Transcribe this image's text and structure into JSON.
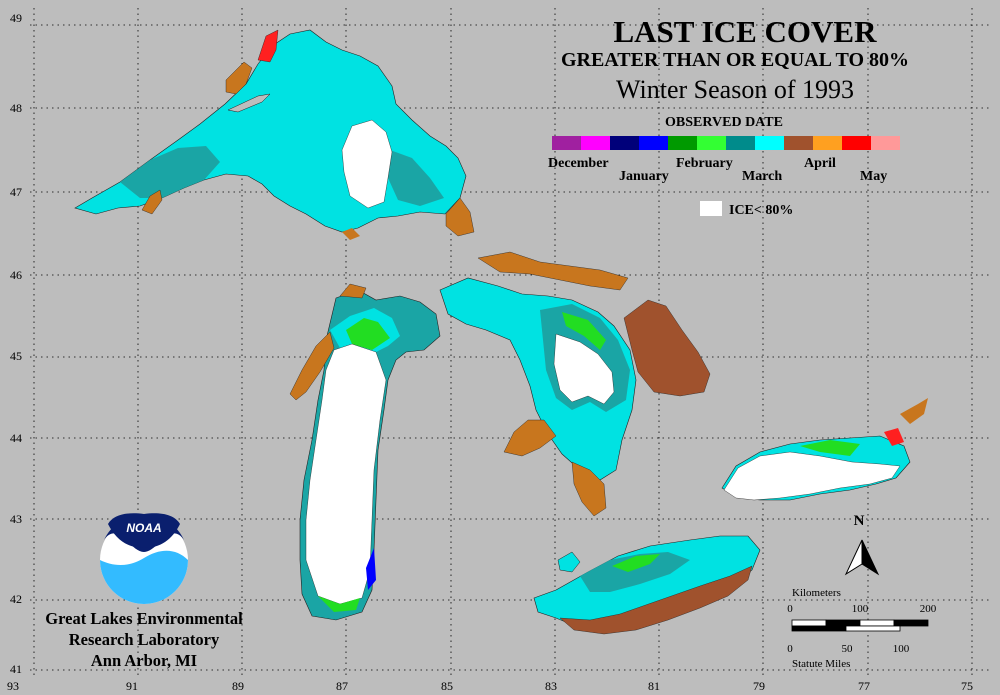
{
  "title": {
    "line1": "LAST ICE COVER",
    "line2": "GREATER THAN OR EQUAL TO 80%",
    "line3": "Winter Season of 1993"
  },
  "legend": {
    "heading": "OBSERVED DATE",
    "months": [
      {
        "label": "December",
        "colors": [
          "#a020a0",
          "#ff00ff"
        ]
      },
      {
        "label": "January",
        "colors": [
          "#00007a",
          "#0000ff"
        ]
      },
      {
        "label": "February",
        "colors": [
          "#009a00",
          "#33ff33"
        ]
      },
      {
        "label": "March",
        "colors": [
          "#008b8b",
          "#00ffff"
        ]
      },
      {
        "label": "April",
        "colors": [
          "#a0522d",
          "#ffa020"
        ]
      },
      {
        "label": "May",
        "colors": [
          "#ff0000",
          "#ff9999"
        ]
      }
    ],
    "ice_less_label": "ICE< 80%"
  },
  "axes": {
    "lat_labels": [
      "49",
      "48",
      "47",
      "46",
      "45",
      "44",
      "43",
      "42",
      "41"
    ],
    "lon_labels": [
      "93",
      "91",
      "89",
      "87",
      "85",
      "83",
      "81",
      "79",
      "77",
      "75"
    ]
  },
  "org": {
    "logo_text": "NOAA",
    "line1": "Great Lakes Environmental",
    "line2": "Research Laboratory",
    "line3": "Ann Arbor, MI"
  },
  "north_arrow": {
    "label": "N"
  },
  "scale_bar": {
    "km_title": "Kilometers",
    "km_ticks": [
      "0",
      "100",
      "200"
    ],
    "mi_ticks": [
      "0",
      "50",
      "100"
    ],
    "mi_title": "Statute Miles"
  },
  "colors": {
    "background": "#bdbdbd",
    "grid": "#000000",
    "ice_lt_80": "#ffffff",
    "march_light": "#00e6e6",
    "march_dark": "#1aa6a6",
    "february": "#22dd22",
    "april": "#c8761e",
    "april_dark": "#a0522d",
    "may": "#ff2020",
    "january": "#0000ff"
  }
}
